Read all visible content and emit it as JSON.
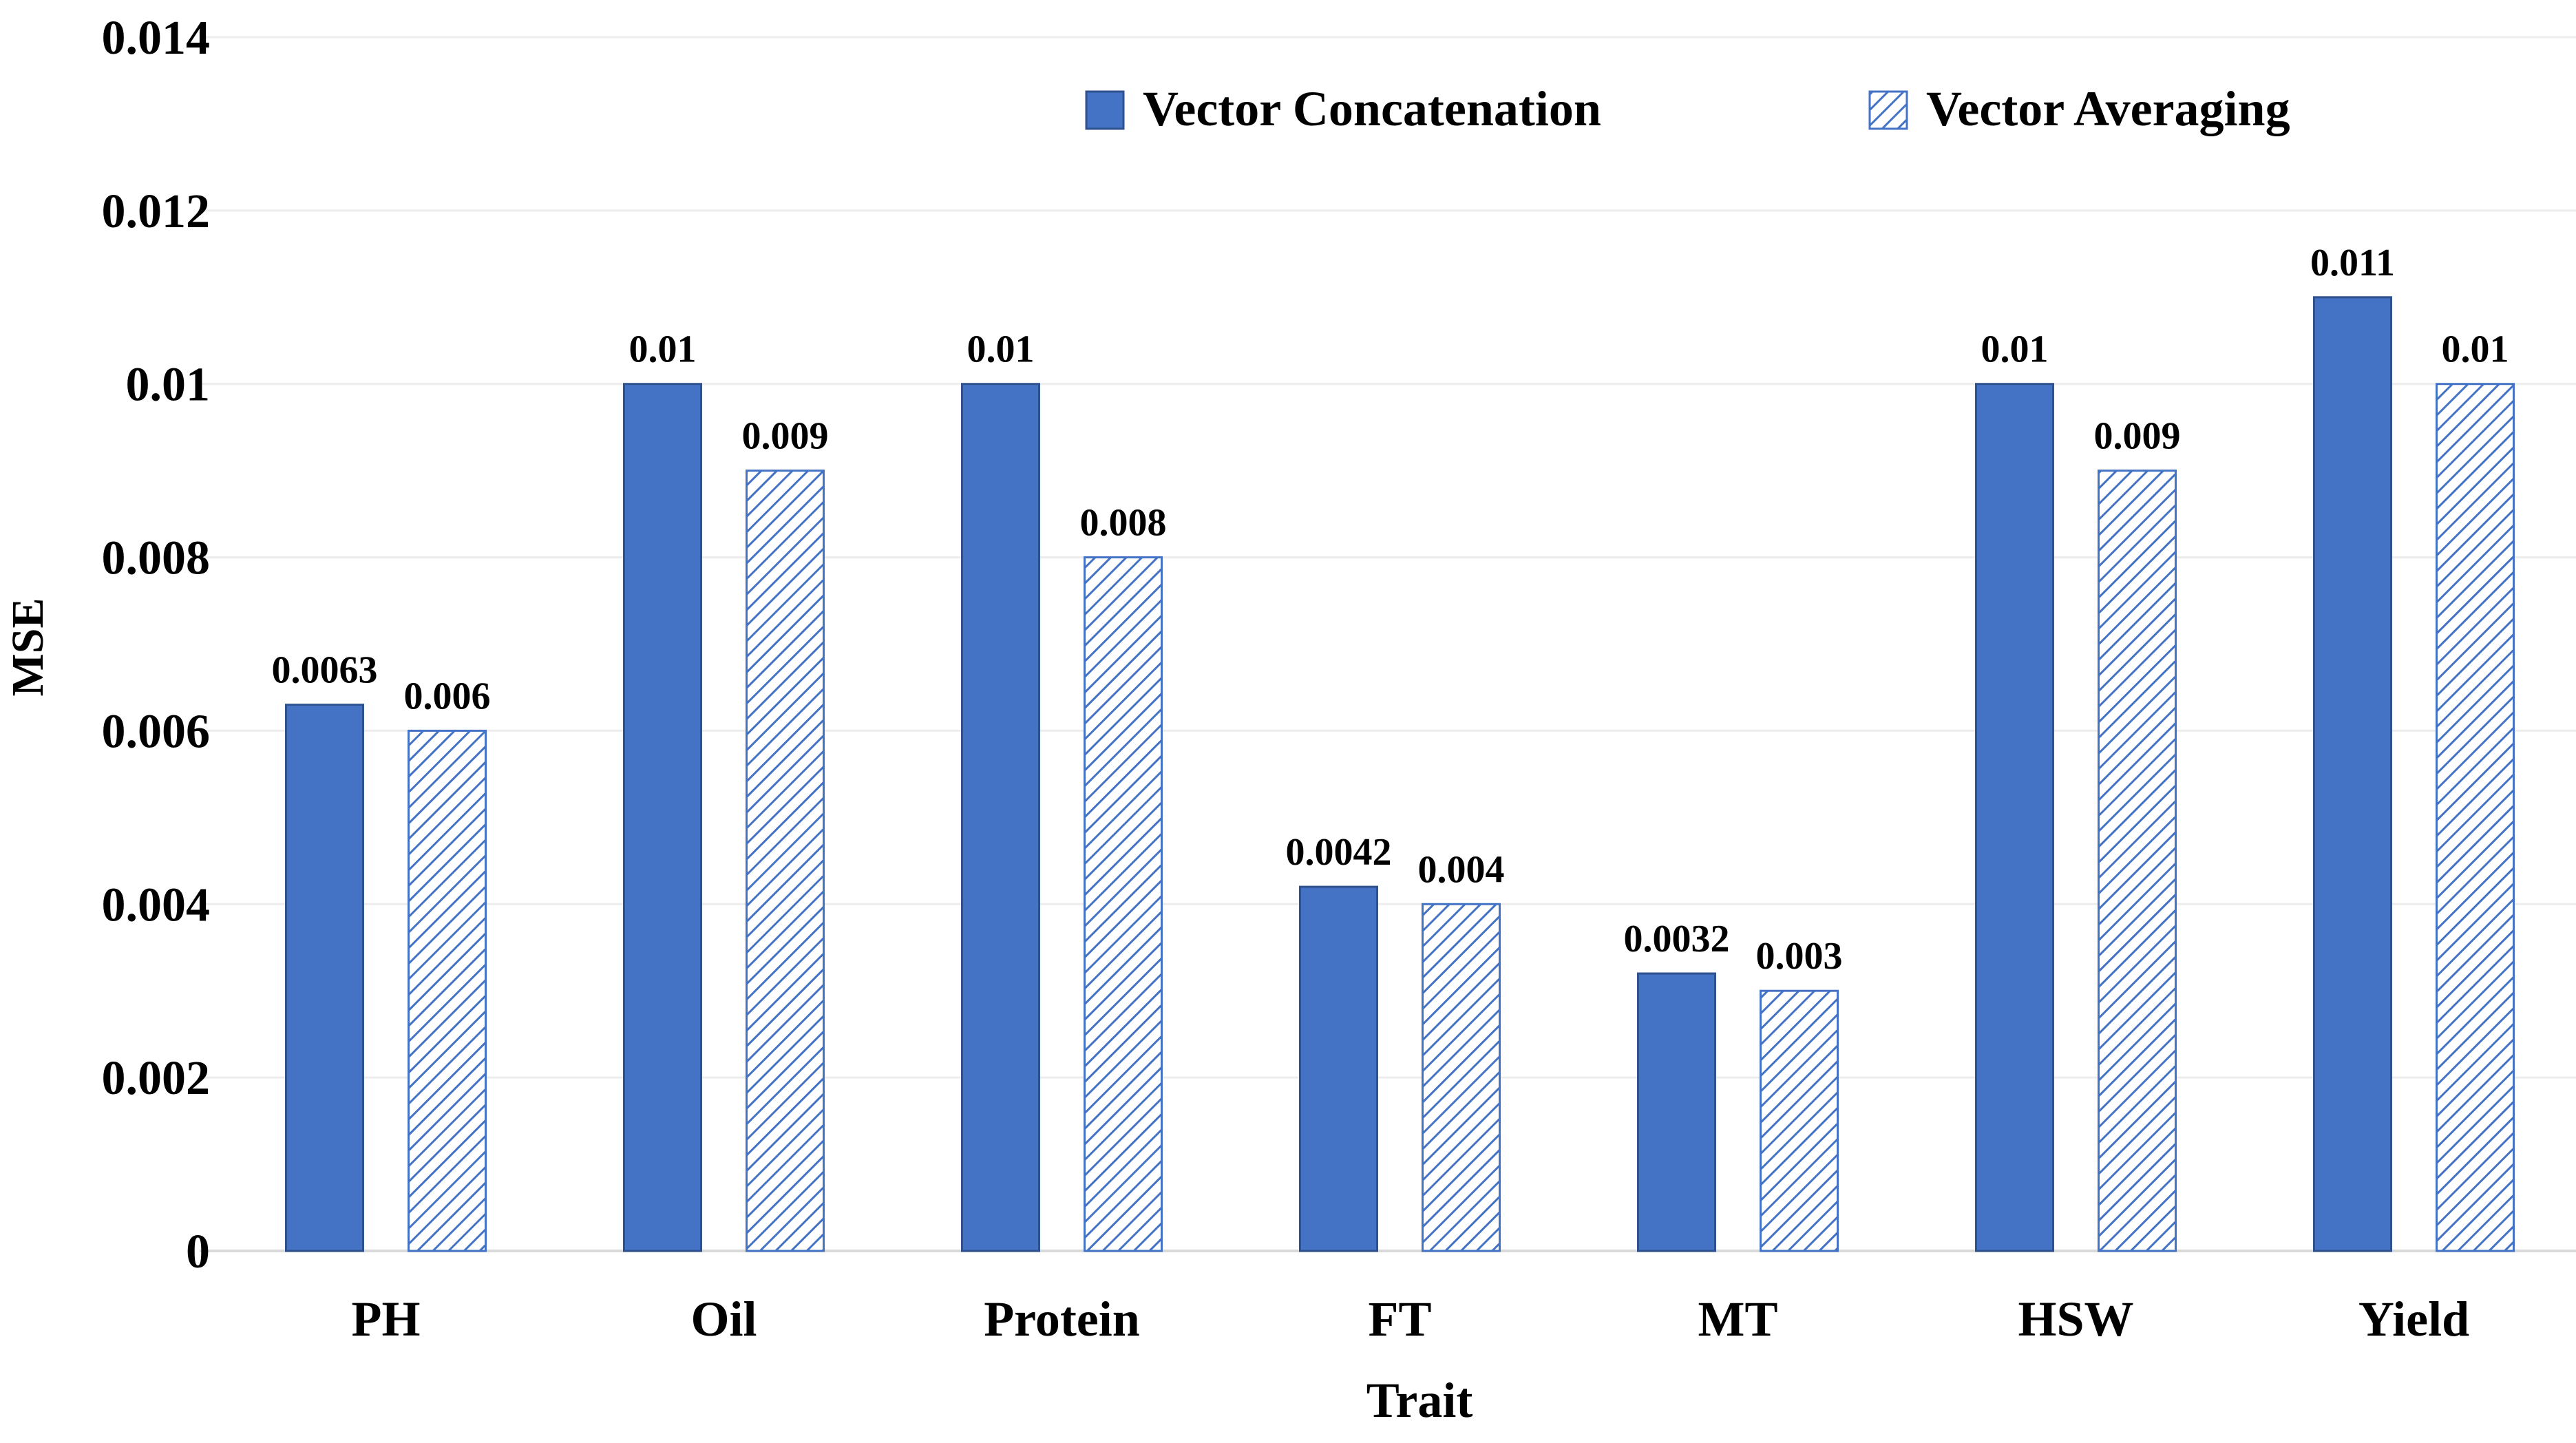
{
  "chart_data": {
    "type": "bar",
    "title": "",
    "xlabel": "Trait",
    "ylabel": "MSE",
    "categories": [
      "PH",
      "Oil",
      "Protein",
      "FT",
      "MT",
      "HSW",
      "Yield"
    ],
    "series": [
      {
        "name": "Vector Concatenation",
        "values": [
          0.0063,
          0.01,
          0.01,
          0.0042,
          0.0032,
          0.01,
          0.011
        ],
        "labels": [
          "0.0063",
          "0.01",
          "0.01",
          "0.0042",
          "0.0032",
          "0.01",
          "0.011"
        ],
        "fill": "solid",
        "color": "#4472C4"
      },
      {
        "name": "Vector Averaging",
        "values": [
          0.006,
          0.009,
          0.008,
          0.004,
          0.003,
          0.009,
          0.01
        ],
        "labels": [
          "0.006",
          "0.009",
          "0.008",
          "0.004",
          "0.003",
          "0.009",
          "0.01"
        ],
        "fill": "diagonal-hatch",
        "color": "#4472C4"
      }
    ],
    "ylim": [
      0,
      0.014
    ],
    "yticks": [
      0,
      0.002,
      0.004,
      0.006,
      0.008,
      0.01,
      0.012,
      0.014
    ],
    "ytick_labels": [
      "0",
      "0.002",
      "0.004",
      "0.006",
      "0.008",
      "0.01",
      "0.012",
      "0.014"
    ],
    "grid": true,
    "legend_position": "top-right",
    "gridline_color": "#EDEDED"
  }
}
